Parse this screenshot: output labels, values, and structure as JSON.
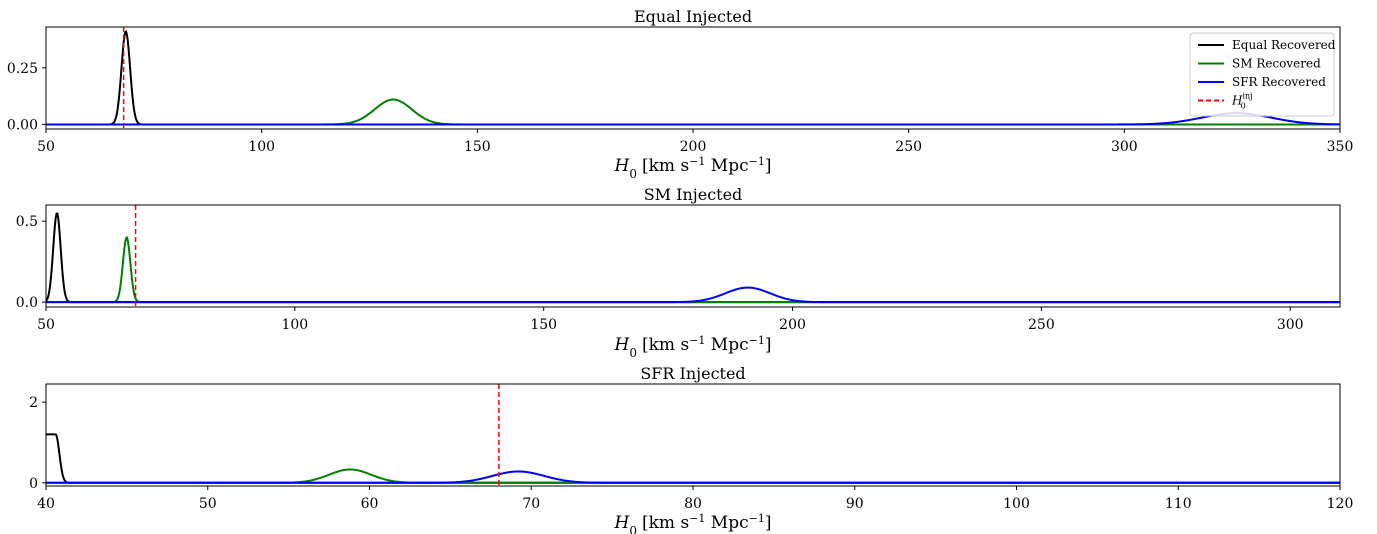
{
  "chart_data": [
    {
      "type": "line",
      "title": "Equal Injected",
      "xlabel_main": "H",
      "xlabel_sub": "0",
      "xlabel_units": "[km s",
      "xlabel_exp1": "−1",
      "xlabel_mid": " Mpc",
      "xlabel_exp2": "−1",
      "xlabel_end": "]",
      "xlim": [
        50,
        350
      ],
      "ylim": [
        -0.02,
        0.43
      ],
      "xticks": [
        50,
        100,
        150,
        200,
        250,
        300,
        350
      ],
      "yticks": [
        0.0,
        0.25
      ],
      "ytick_labels": [
        "0.00",
        "0.25"
      ],
      "series": [
        {
          "name": "Equal Recovered",
          "color": "#000000",
          "peaks": [
            {
              "mu": 68.5,
              "sigma": 1.0,
              "amp": 0.41
            }
          ]
        },
        {
          "name": "SM Recovered",
          "color": "#008000",
          "peaks": [
            {
              "mu": 130.5,
              "sigma": 4.3,
              "amp": 0.11
            }
          ]
        },
        {
          "name": "SFR Recovered",
          "color": "#0000ff",
          "peaks": [
            {
              "mu": 326,
              "sigma": 8.0,
              "amp": 0.05
            }
          ]
        }
      ],
      "injected_H0": 68,
      "legend": {
        "position": "top-right",
        "entries": [
          {
            "label": "Equal Recovered",
            "color": "#000000",
            "style": "solid"
          },
          {
            "label": "SM Recovered",
            "color": "#008000",
            "style": "solid"
          },
          {
            "label": "SFR Recovered",
            "color": "#0000ff",
            "style": "solid"
          },
          {
            "label": "H",
            "sub": "0",
            "sup": "inj",
            "color": "#ff0000",
            "style": "dashed"
          }
        ]
      }
    },
    {
      "type": "line",
      "title": "SM Injected",
      "xlabel_main": "H",
      "xlabel_sub": "0",
      "xlabel_units": "[km s",
      "xlabel_exp1": "−1",
      "xlabel_mid": " Mpc",
      "xlabel_exp2": "−1",
      "xlabel_end": "]",
      "xlim": [
        50,
        310
      ],
      "ylim": [
        -0.03,
        0.6
      ],
      "xticks": [
        50,
        100,
        150,
        200,
        250,
        300
      ],
      "yticks": [
        0.0,
        0.5
      ],
      "ytick_labels": [
        "0.0",
        "0.5"
      ],
      "series": [
        {
          "name": "Equal Recovered",
          "color": "#000000",
          "peaks": [
            {
              "mu": 52.2,
              "sigma": 0.75,
              "amp": 0.55
            }
          ]
        },
        {
          "name": "SM Recovered",
          "color": "#008000",
          "peaks": [
            {
              "mu": 66.2,
              "sigma": 0.75,
              "amp": 0.4
            }
          ]
        },
        {
          "name": "SFR Recovered",
          "color": "#0000ff",
          "peaks": [
            {
              "mu": 191,
              "sigma": 4.5,
              "amp": 0.09
            }
          ]
        }
      ],
      "injected_H0": 68
    },
    {
      "type": "line",
      "title": "SFR Injected",
      "xlabel_main": "H",
      "xlabel_sub": "0",
      "xlabel_units": "[km s",
      "xlabel_exp1": "−1",
      "xlabel_mid": " Mpc",
      "xlabel_exp2": "−1",
      "xlabel_end": "]",
      "xlim": [
        40,
        120
      ],
      "ylim": [
        -0.08,
        2.45
      ],
      "xticks": [
        40,
        50,
        60,
        70,
        80,
        90,
        100,
        110,
        120
      ],
      "yticks": [
        0,
        2
      ],
      "ytick_labels": [
        "0",
        "2"
      ],
      "series": [
        {
          "name": "Equal Recovered",
          "color": "#000000",
          "edge": {
            "x0": 40,
            "flat_to": 40.6,
            "amp": 1.2,
            "decay": 0.32
          }
        },
        {
          "name": "SM Recovered",
          "color": "#008000",
          "peaks": [
            {
              "mu": 58.8,
              "sigma": 1.3,
              "amp": 0.33
            }
          ]
        },
        {
          "name": "SFR Recovered",
          "color": "#0000ff",
          "peaks": [
            {
              "mu": 69.2,
              "sigma": 1.6,
              "amp": 0.28
            }
          ]
        }
      ],
      "injected_H0": 68
    }
  ]
}
